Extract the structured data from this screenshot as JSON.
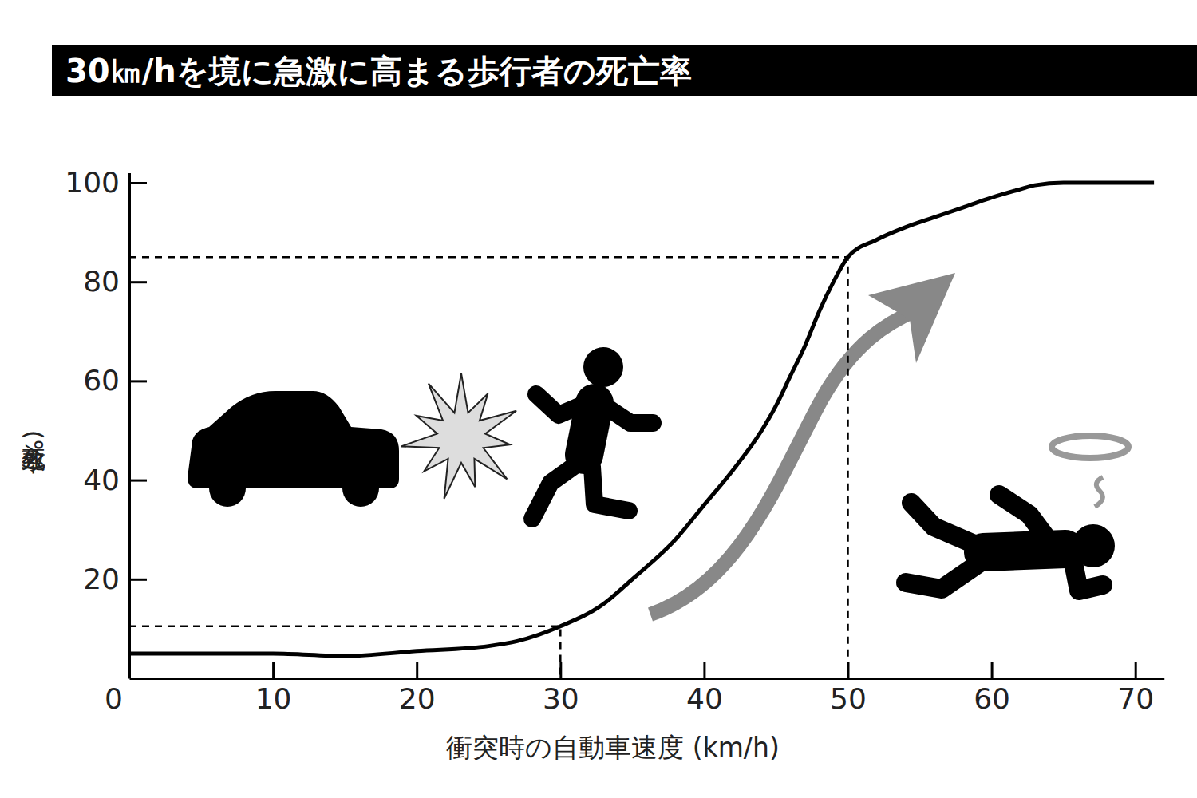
{
  "chart_data": {
    "type": "line",
    "title": "30㎞/hを境に急激に高まる歩行者の死亡率",
    "x_label": "衝突時の自動車速度 (km/h)",
    "y_label": "致死率(%)",
    "x": [
      0,
      5,
      10,
      15,
      20,
      25,
      27,
      30,
      33,
      35,
      38,
      40,
      42,
      44,
      45,
      46,
      47,
      48,
      49,
      50,
      52,
      54,
      56,
      58,
      60,
      62,
      63,
      65,
      68,
      71.3
    ],
    "values": [
      5,
      5,
      5,
      4.5,
      5.5,
      6.5,
      7.5,
      10.5,
      15,
      20,
      28,
      35,
      42,
      50,
      55,
      61,
      67,
      74,
      80,
      85,
      88.5,
      91,
      93,
      95,
      97,
      98.7,
      99.5,
      100,
      100,
      100
    ],
    "color": "#000000",
    "reference_points": {
      "x": [
        30,
        50
      ],
      "y": [
        10.5,
        85
      ]
    },
    "xlim": [
      0,
      72
    ],
    "xticks": [
      0,
      10,
      20,
      30,
      40,
      50,
      60,
      70
    ],
    "ylim": [
      0,
      102
    ],
    "yticks": [
      20,
      40,
      60,
      80,
      100
    ],
    "grid": false
  }
}
